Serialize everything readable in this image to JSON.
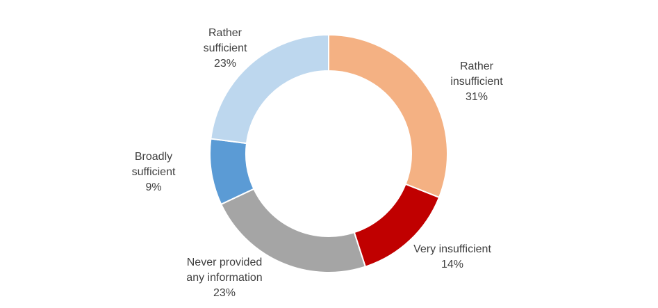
{
  "chart_data": {
    "type": "pie",
    "donut": true,
    "start": "top",
    "direction": "clockwise",
    "slices": [
      {
        "label": "Rather insufficient",
        "value": 31,
        "display": "31%",
        "color": "#F4B183"
      },
      {
        "label": "Very insufficient",
        "value": 14,
        "display": "14%",
        "color": "#C00000"
      },
      {
        "label": "Never provided any information",
        "value": 23,
        "display": "23%",
        "color": "#A5A5A5"
      },
      {
        "label": "Broadly sufficient",
        "value": 9,
        "display": "9%",
        "color": "#5B9BD5"
      },
      {
        "label": "Rather sufficient",
        "value": 23,
        "display": "23%",
        "color": "#BDD7EE"
      }
    ]
  }
}
